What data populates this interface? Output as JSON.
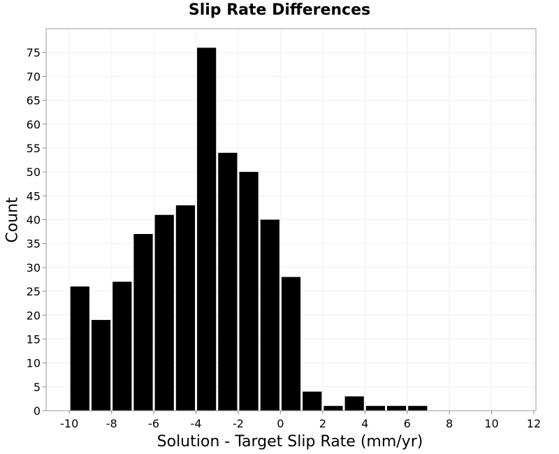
{
  "chart_data": {
    "type": "bar",
    "title": "Slip Rate Differences",
    "xlabel": "Solution - Target Slip Rate (mm/yr)",
    "ylabel": "Count",
    "bin_width": 1,
    "bins": [
      {
        "x0": -10,
        "x1": -9,
        "count": 26
      },
      {
        "x0": -9,
        "x1": -8,
        "count": 19
      },
      {
        "x0": -8,
        "x1": -7,
        "count": 27
      },
      {
        "x0": -7,
        "x1": -6,
        "count": 37
      },
      {
        "x0": -6,
        "x1": -5,
        "count": 41
      },
      {
        "x0": -5,
        "x1": -4,
        "count": 43
      },
      {
        "x0": -4,
        "x1": -3,
        "count": 76
      },
      {
        "x0": -3,
        "x1": -2,
        "count": 54
      },
      {
        "x0": -2,
        "x1": -1,
        "count": 50
      },
      {
        "x0": -1,
        "x1": 0,
        "count": 40
      },
      {
        "x0": 0,
        "x1": 1,
        "count": 28
      },
      {
        "x0": 1,
        "x1": 2,
        "count": 4
      },
      {
        "x0": 2,
        "x1": 3,
        "count": 1
      },
      {
        "x0": 3,
        "x1": 4,
        "count": 3
      },
      {
        "x0": 4,
        "x1": 5,
        "count": 1
      },
      {
        "x0": 5,
        "x1": 6,
        "count": 1
      },
      {
        "x0": 6,
        "x1": 7,
        "count": 1
      }
    ],
    "xlim": [
      -11.1,
      12.1
    ],
    "ylim": [
      0,
      80
    ],
    "xticks": [
      "-10",
      "-8",
      "-6",
      "-4",
      "-2",
      "0",
      "2",
      "4",
      "6",
      "8",
      "10",
      "12"
    ],
    "yticks": [
      "0",
      "5",
      "10",
      "15",
      "20",
      "25",
      "30",
      "35",
      "40",
      "45",
      "50",
      "55",
      "60",
      "65",
      "70",
      "75"
    ],
    "bar_color": "#000000",
    "grid": true,
    "grid_color": "#eeeeee",
    "legend": "none"
  }
}
